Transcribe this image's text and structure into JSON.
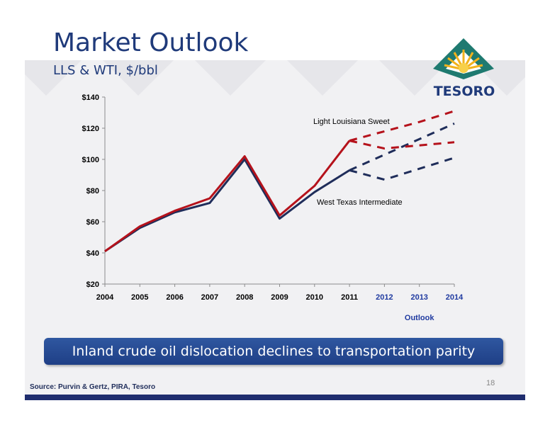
{
  "slide": {
    "title": "Market Outlook",
    "subtitle": "LLS & WTI, $/bbl",
    "banner": "Inland crude oil dislocation declines to transportation parity",
    "source": "Source: Purvin & Gertz, PIRA, Tesoro",
    "page_number": "18",
    "logo_text": "TESORO"
  },
  "colors": {
    "title": "#1f3a7a",
    "lls": "#b5121b",
    "wti": "#1f2d5a",
    "outlook_ticks": "#1f3aa0",
    "banner": "#2a4f98"
  },
  "chart_data": {
    "type": "line",
    "x": [
      "2004",
      "2005",
      "2006",
      "2007",
      "2008",
      "2009",
      "2010",
      "2011",
      "2012",
      "2013",
      "2014"
    ],
    "xlabel_outlook": "Outlook",
    "ylim": [
      20,
      140
    ],
    "yticks": [
      "$20",
      "$40",
      "$60",
      "$80",
      "$100",
      "$120",
      "$140"
    ],
    "ytick_values": [
      20,
      40,
      60,
      80,
      100,
      120,
      140
    ],
    "grid": false,
    "series": [
      {
        "name": "Light Louisiana Sweet",
        "historical": [
          [
            2004,
            41
          ],
          [
            2005,
            57
          ],
          [
            2006,
            67
          ],
          [
            2007,
            75
          ],
          [
            2008,
            102
          ],
          [
            2009,
            64
          ],
          [
            2010,
            83
          ],
          [
            2011,
            112
          ]
        ],
        "forecast_high": [
          [
            2011,
            112
          ],
          [
            2012,
            118
          ],
          [
            2013,
            124
          ],
          [
            2014,
            131
          ]
        ],
        "forecast_low": [
          [
            2011,
            112
          ],
          [
            2012,
            107
          ],
          [
            2013,
            109
          ],
          [
            2014,
            111
          ]
        ]
      },
      {
        "name": "West Texas Intermediate",
        "historical": [
          [
            2004,
            41
          ],
          [
            2005,
            56
          ],
          [
            2006,
            66
          ],
          [
            2007,
            72
          ],
          [
            2008,
            100
          ],
          [
            2009,
            62
          ],
          [
            2010,
            79
          ],
          [
            2011,
            93
          ]
        ],
        "forecast_high": [
          [
            2011,
            93
          ],
          [
            2012,
            103
          ],
          [
            2013,
            113
          ],
          [
            2014,
            123
          ]
        ],
        "forecast_low": [
          [
            2011,
            93
          ],
          [
            2012,
            87
          ],
          [
            2013,
            94
          ],
          [
            2014,
            101
          ]
        ]
      }
    ]
  }
}
